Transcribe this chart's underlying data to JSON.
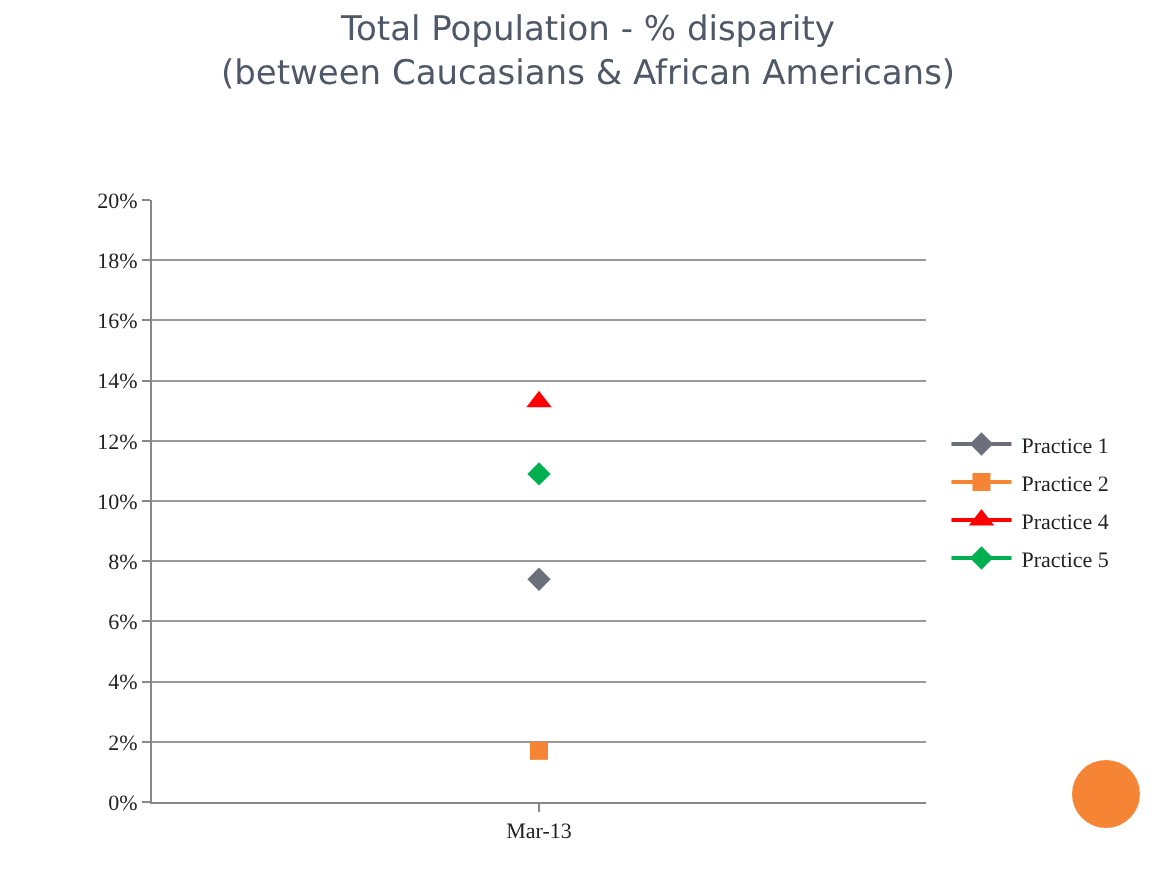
{
  "chart_data": {
    "type": "line",
    "title": "Total Population - % disparity\n(between Caucasians & African Americans)",
    "categories": [
      "Mar-13"
    ],
    "series": [
      {
        "name": "Practice 1",
        "color": "#6b6f7a",
        "values": [
          7.4
        ],
        "marker": "diamond"
      },
      {
        "name": "Practice 2",
        "color": "#f58434",
        "values": [
          1.7
        ],
        "marker": "square"
      },
      {
        "name": "Practice 4",
        "color": "#ff0000",
        "values": [
          13.3
        ],
        "marker": "triangle"
      },
      {
        "name": "Practice 5",
        "color": "#00b050",
        "values": [
          10.9
        ],
        "marker": "diamond"
      }
    ],
    "ylim": [
      0,
      20
    ],
    "yticks": [
      {
        "value": 0,
        "label": "0%"
      },
      {
        "value": 2,
        "label": "2%"
      },
      {
        "value": 4,
        "label": "4%"
      },
      {
        "value": 6,
        "label": "6%"
      },
      {
        "value": 8,
        "label": "8%"
      },
      {
        "value": 10,
        "label": "10%"
      },
      {
        "value": 12,
        "label": "12%"
      },
      {
        "value": 14,
        "label": "14%"
      },
      {
        "value": 16,
        "label": "16%"
      },
      {
        "value": 18,
        "label": "18%"
      },
      {
        "value": 20,
        "label": "20%"
      }
    ],
    "grid": "y",
    "legend": "right",
    "line_style": "solid"
  }
}
